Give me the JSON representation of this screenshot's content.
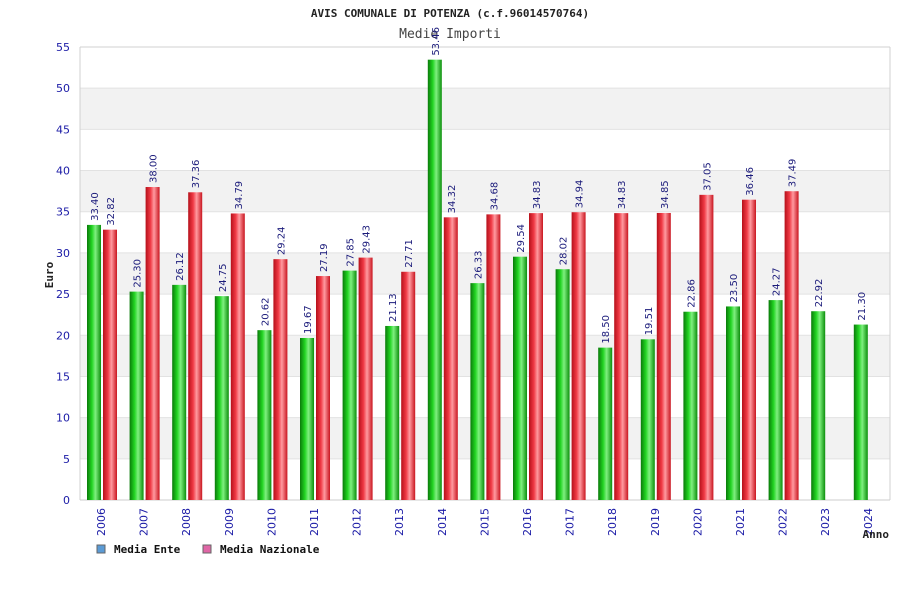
{
  "chart_data": {
    "type": "bar",
    "title": "AVIS COMUNALE DI POTENZA (c.f.96014570764)",
    "subtitle": "Medie Importi",
    "ylabel": "Euro",
    "xlabel": "Anno",
    "ylim": [
      0,
      55
    ],
    "yticks": [
      0,
      5,
      10,
      15,
      20,
      25,
      30,
      35,
      40,
      45,
      50,
      55
    ],
    "grid": "horizontal-bands",
    "legend_position": "bottom-left",
    "categories": [
      "2006",
      "2007",
      "2008",
      "2009",
      "2010",
      "2011",
      "2012",
      "2013",
      "2014",
      "2015",
      "2016",
      "2017",
      "2018",
      "2019",
      "2020",
      "2021",
      "2022",
      "2023",
      "2024"
    ],
    "series": [
      {
        "name": "Media Ente",
        "bar_color": "#16b416",
        "legend_color": "#5b9bd5",
        "values": [
          33.4,
          25.3,
          26.12,
          24.75,
          20.62,
          19.67,
          27.85,
          21.13,
          53.46,
          26.33,
          29.54,
          28.02,
          18.5,
          19.51,
          22.86,
          23.5,
          24.27,
          22.92,
          21.3
        ],
        "labels": [
          "33.40",
          "25.30",
          "26.12",
          "24.75",
          "20.62",
          "19.67",
          "27.85",
          "21.13",
          "53.46",
          "26.33",
          "29.54",
          "28.02",
          "18.50",
          "19.51",
          "22.86",
          "23.50",
          "24.27",
          "22.92",
          "21.30"
        ]
      },
      {
        "name": "Media Nazionale",
        "bar_color": "#e8232f",
        "legend_color": "#e066a6",
        "values": [
          32.82,
          38.0,
          37.36,
          34.79,
          29.24,
          27.19,
          29.43,
          27.71,
          34.32,
          34.68,
          34.83,
          34.94,
          34.83,
          34.85,
          37.05,
          36.46,
          37.49,
          null,
          null
        ],
        "labels": [
          "32.82",
          "38.00",
          "37.36",
          "34.79",
          "29.24",
          "27.19",
          "29.43",
          "27.71",
          "34.32",
          "34.68",
          "34.83",
          "34.94",
          "34.83",
          "34.85",
          "37.05",
          "36.46",
          "37.49",
          null,
          null
        ]
      }
    ]
  }
}
